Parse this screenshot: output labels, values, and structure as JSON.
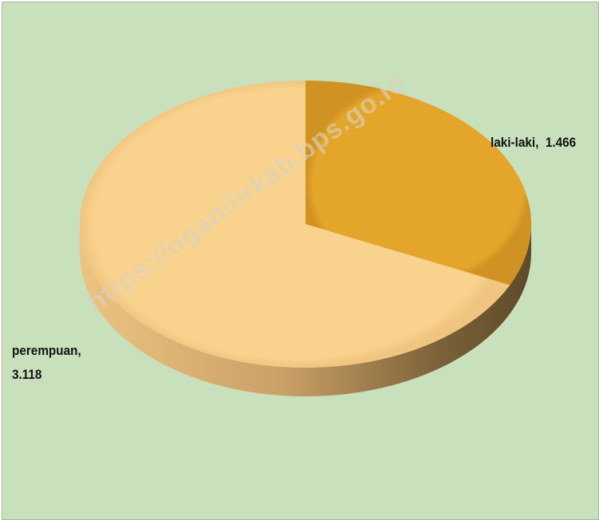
{
  "chart_data": {
    "type": "pie",
    "three_d": true,
    "slices": [
      {
        "label": "laki-laki",
        "value": 1.466,
        "value_text": "1.466",
        "color": "#e4a52b"
      },
      {
        "label": "perempuan",
        "value": 3.118,
        "value_text": "3.118",
        "color": "#f8d08a"
      }
    ],
    "background_color": "#c9e0bc",
    "legend": "none"
  },
  "watermark": "https://oganilirkab.bps.go.id"
}
